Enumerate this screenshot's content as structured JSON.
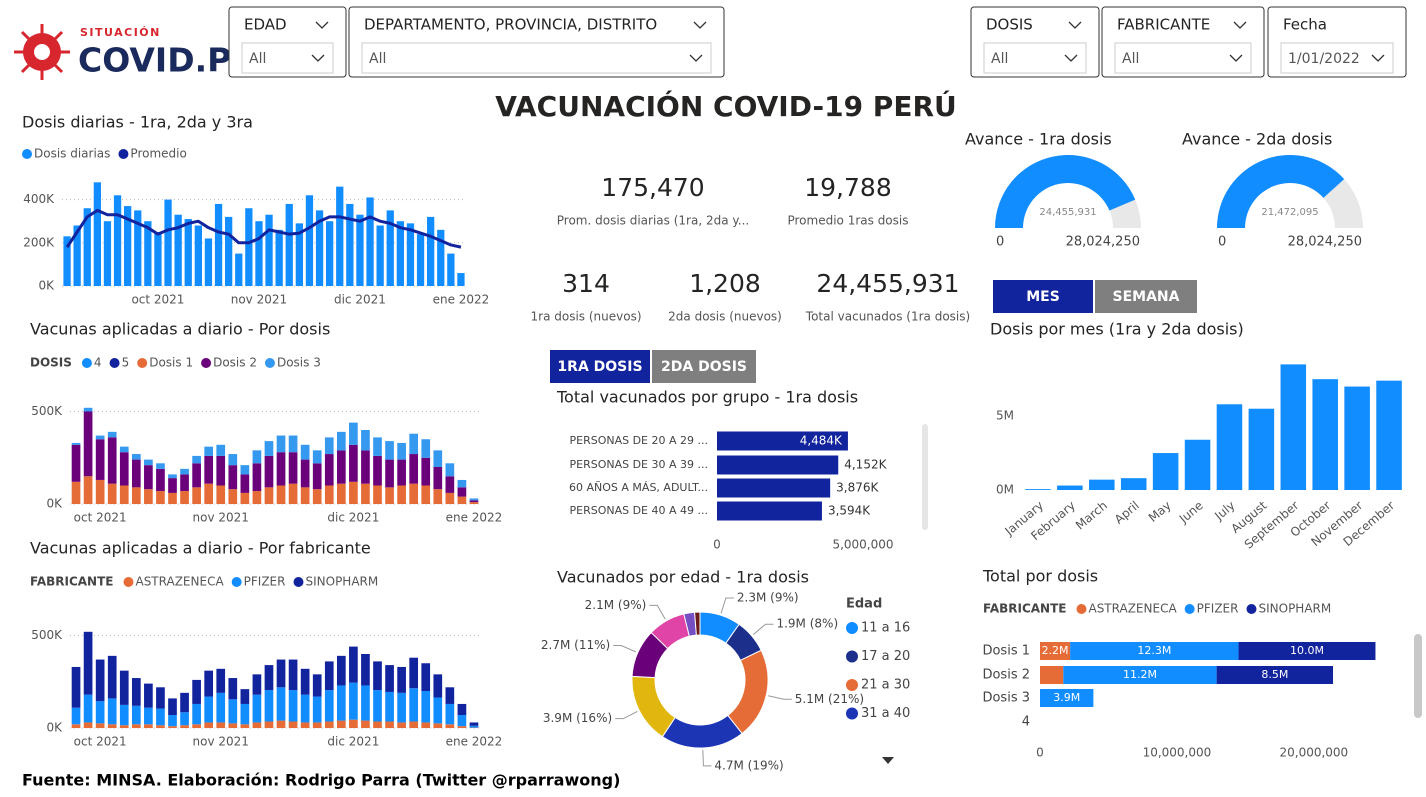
{
  "header": {
    "logo_top": "SITUACIÓN",
    "logo_main": "COVID.PE",
    "title": "VACUNACIÓN COVID-19 PERÚ"
  },
  "filters": [
    {
      "label": "EDAD",
      "value": "All"
    },
    {
      "label": "DEPARTAMENTO, PROVINCIA, DISTRITO",
      "value": "All"
    },
    {
      "label": "DOSIS",
      "value": "All"
    },
    {
      "label": "FABRICANTE",
      "value": "All"
    },
    {
      "label": "Fecha",
      "value": "1/01/2022"
    }
  ],
  "kpis": [
    {
      "value": "175,470",
      "label": "Prom. dosis diarias (1ra, 2da y..."
    },
    {
      "value": "19,788",
      "label": "Promedio 1ras dosis"
    },
    {
      "value": "314",
      "label": "1ra dosis (nuevos)"
    },
    {
      "value": "1,208",
      "label": "2da dosis (nuevos)"
    },
    {
      "value": "24,455,931",
      "label": "Total vacunados (1ra dosis)"
    }
  ],
  "toggles": {
    "period": [
      "MES",
      "SEMANA"
    ],
    "dose": [
      "1RA DOSIS",
      "2DA DOSIS"
    ]
  },
  "footer": "Fuente: MINSA. Elaboración: Rodrigo Parra (Twitter @rparrawong)",
  "chart_data": [
    {
      "type": "bar",
      "title": "Dosis diarias - 1ra, 2da y 3ra",
      "grid": true,
      "categories": [
        null,
        null,
        null,
        null,
        null,
        null,
        null,
        null,
        null,
        "oct 2021",
        null,
        null,
        null,
        null,
        null,
        null,
        null,
        null,
        null,
        "nov 2021",
        null,
        null,
        null,
        null,
        null,
        null,
        null,
        null,
        null,
        "dic 2021",
        null,
        null,
        null,
        null,
        null,
        null,
        null,
        null,
        null,
        "ene 2022"
      ],
      "series": [
        {
          "name": "Dosis diarias",
          "color": "#118dff",
          "values": [
            230000,
            280000,
            360000,
            480000,
            300000,
            420000,
            370000,
            350000,
            300000,
            250000,
            400000,
            330000,
            310000,
            280000,
            220000,
            380000,
            320000,
            150000,
            360000,
            300000,
            330000,
            260000,
            380000,
            290000,
            420000,
            350000,
            300000,
            460000,
            380000,
            330000,
            410000,
            280000,
            350000,
            300000,
            290000,
            240000,
            320000,
            260000,
            150000,
            60000
          ]
        },
        {
          "name": "Promedio",
          "color": "#12239e",
          "type": "line",
          "values": [
            180000,
            250000,
            320000,
            350000,
            330000,
            330000,
            310000,
            290000,
            270000,
            240000,
            260000,
            270000,
            290000,
            300000,
            270000,
            250000,
            240000,
            200000,
            200000,
            220000,
            260000,
            250000,
            240000,
            245000,
            270000,
            300000,
            320000,
            320000,
            310000,
            300000,
            320000,
            300000,
            290000,
            270000,
            260000,
            245000,
            230000,
            210000,
            190000,
            180000
          ]
        }
      ],
      "ylim": [
        0,
        500000
      ],
      "yticks": [
        {
          "value": 0,
          "label": "0K"
        },
        {
          "value": 200000,
          "label": "200K"
        },
        {
          "value": 400000,
          "label": "400K"
        }
      ]
    },
    {
      "type": "bar",
      "title": "Vacunas aplicadas a diario - Por dosis",
      "legend_title": "DOSIS",
      "grid": true,
      "categories": [
        null,
        null,
        "oct 2021",
        null,
        null,
        null,
        null,
        null,
        null,
        null,
        null,
        null,
        "nov 2021",
        null,
        null,
        null,
        null,
        null,
        null,
        null,
        null,
        null,
        null,
        "dic 2021",
        null,
        null,
        null,
        null,
        null,
        null,
        null,
        null,
        null,
        "ene 2022"
      ],
      "series": [
        {
          "name": "4",
          "color": "#118dff",
          "values": [
            0,
            0,
            0,
            0,
            0,
            0,
            0,
            0,
            0,
            0,
            0,
            0,
            0,
            0,
            0,
            0,
            0,
            0,
            0,
            0,
            0,
            0,
            0,
            0,
            0,
            0,
            0,
            0,
            0,
            0,
            0,
            0,
            0,
            0
          ]
        },
        {
          "name": "5",
          "color": "#12239e",
          "values": [
            0,
            0,
            0,
            0,
            0,
            0,
            0,
            0,
            0,
            0,
            0,
            0,
            0,
            0,
            0,
            0,
            0,
            0,
            0,
            0,
            0,
            0,
            0,
            0,
            0,
            0,
            0,
            0,
            0,
            0,
            0,
            0,
            0,
            0
          ]
        },
        {
          "name": "Dosis 1",
          "color": "#e66c37",
          "values": [
            120000,
            150000,
            130000,
            110000,
            100000,
            90000,
            80000,
            70000,
            60000,
            70000,
            90000,
            110000,
            100000,
            80000,
            60000,
            70000,
            90000,
            100000,
            110000,
            90000,
            80000,
            100000,
            110000,
            120000,
            110000,
            100000,
            90000,
            100000,
            110000,
            100000,
            80000,
            60000,
            40000,
            10000
          ]
        },
        {
          "name": "Dosis 2",
          "color": "#6b007b",
          "values": [
            200000,
            350000,
            220000,
            250000,
            180000,
            150000,
            130000,
            120000,
            80000,
            90000,
            130000,
            150000,
            160000,
            130000,
            100000,
            150000,
            170000,
            180000,
            170000,
            150000,
            140000,
            170000,
            180000,
            200000,
            180000,
            160000,
            150000,
            140000,
            160000,
            150000,
            120000,
            90000,
            50000,
            10000
          ]
        },
        {
          "name": "Dosis 3",
          "color": "#3599f0",
          "values": [
            10000,
            20000,
            20000,
            30000,
            30000,
            30000,
            30000,
            30000,
            20000,
            30000,
            40000,
            50000,
            60000,
            60000,
            50000,
            70000,
            80000,
            90000,
            90000,
            80000,
            70000,
            90000,
            100000,
            120000,
            110000,
            100000,
            100000,
            90000,
            110000,
            100000,
            90000,
            70000,
            40000,
            10000
          ]
        }
      ],
      "ylim": [
        0,
        600000
      ],
      "yticks": [
        {
          "value": 0,
          "label": "0K"
        },
        {
          "value": 500000,
          "label": "500K"
        }
      ]
    },
    {
      "type": "bar",
      "title": "Vacunas aplicadas a diario - Por fabricante",
      "legend_title": "FABRICANTE",
      "grid": true,
      "categories": [
        null,
        null,
        "oct 2021",
        null,
        null,
        null,
        null,
        null,
        null,
        null,
        null,
        null,
        "nov 2021",
        null,
        null,
        null,
        null,
        null,
        null,
        null,
        null,
        null,
        null,
        "dic 2021",
        null,
        null,
        null,
        null,
        null,
        null,
        null,
        null,
        null,
        "ene 2022"
      ],
      "series": [
        {
          "name": "ASTRAZENECA",
          "color": "#e66c37",
          "values": [
            20000,
            30000,
            25000,
            20000,
            15000,
            20000,
            20000,
            15000,
            10000,
            15000,
            20000,
            30000,
            30000,
            25000,
            20000,
            30000,
            35000,
            40000,
            35000,
            30000,
            30000,
            35000,
            40000,
            45000,
            40000,
            35000,
            35000,
            30000,
            35000,
            30000,
            25000,
            20000,
            10000,
            2000
          ]
        },
        {
          "name": "PFIZER",
          "color": "#118dff",
          "values": [
            90000,
            150000,
            120000,
            140000,
            110000,
            100000,
            90000,
            90000,
            60000,
            70000,
            110000,
            140000,
            160000,
            130000,
            110000,
            150000,
            170000,
            180000,
            170000,
            150000,
            140000,
            170000,
            190000,
            200000,
            190000,
            170000,
            160000,
            160000,
            180000,
            170000,
            140000,
            110000,
            60000,
            10000
          ]
        },
        {
          "name": "SINOPHARM",
          "color": "#12239e",
          "values": [
            220000,
            340000,
            225000,
            230000,
            185000,
            150000,
            130000,
            115000,
            90000,
            105000,
            130000,
            140000,
            130000,
            115000,
            80000,
            110000,
            135000,
            150000,
            165000,
            140000,
            120000,
            155000,
            160000,
            195000,
            170000,
            155000,
            145000,
            140000,
            165000,
            150000,
            125000,
            90000,
            60000,
            18000
          ]
        }
      ],
      "ylim": [
        0,
        600000
      ],
      "yticks": [
        {
          "value": 0,
          "label": "0K"
        },
        {
          "value": 500000,
          "label": "500K"
        }
      ]
    },
    {
      "type": "hbar",
      "title": "Total vacunados por grupo - 1ra dosis",
      "color": "#12239e",
      "categories": [
        "PERSONAS DE 20 A 29 ...",
        "PERSONAS DE 30 A 39 ...",
        "60 AÑOS A MÁS, ADULT...",
        "PERSONAS DE 40 A 49 ..."
      ],
      "values": [
        4484000,
        4152000,
        3876000,
        3594000
      ],
      "value_labels": [
        "4,484K",
        "4,152K",
        "3,876K",
        "3,594K"
      ],
      "xlim": [
        0,
        5000000
      ],
      "xticks": [
        0,
        {
          "value": 5000000,
          "label": "5,000,000"
        }
      ]
    },
    {
      "type": "pie",
      "donut": true,
      "title": "Vacunados por edad - 1ra dosis",
      "legend_title": "Edad",
      "categories": [
        "11 a 16",
        "17 a 20",
        "21 a 30",
        "31 a 40",
        null,
        null,
        null,
        null,
        null
      ],
      "values": [
        2300000,
        1900000,
        5100000,
        4700000,
        3900000,
        2700000,
        2100000,
        600000,
        300000
      ],
      "value_labels": [
        "2.3M (9%)",
        "1.9M (8%)",
        "5.1M (21%)",
        "4.7M (19%)",
        "3.9M (16%)",
        "2.7M (11%)",
        "2.1M (9%)",
        null,
        null
      ],
      "colors": [
        "#118dff",
        "#1c2f8a",
        "#e66c37",
        "#1b35b5",
        "#e1b70f",
        "#6b007b",
        "#e044a7",
        "#744ec2",
        "#6b1b1b"
      ]
    },
    {
      "type": "gauge",
      "title": "Avance - 1ra dosis",
      "color": "#118dff",
      "values": [
        24455931
      ],
      "value_labels": [
        "24,455,931"
      ],
      "ylim": [
        0,
        28024250
      ],
      "yticks": [
        0,
        {
          "value": 28024250,
          "label": "28,024,250"
        }
      ]
    },
    {
      "type": "gauge",
      "title": "Avance - 2da dosis",
      "color": "#118dff",
      "values": [
        21472095
      ],
      "value_labels": [
        "21,472,095"
      ],
      "ylim": [
        0,
        28024250
      ],
      "yticks": [
        0,
        {
          "value": 28024250,
          "label": "28,024,250"
        }
      ]
    },
    {
      "type": "bar",
      "title": "Dosis por mes (1ra y 2da dosis)",
      "xtick_rotation": -40,
      "categories": [
        "January",
        "February",
        "March",
        "April",
        "May",
        "June",
        "July",
        "August",
        "September",
        "October",
        "November",
        "December"
      ],
      "values": [
        60000,
        300000,
        700000,
        800000,
        2500000,
        3400000,
        5800000,
        5500000,
        8500000,
        7500000,
        7000000,
        7400000
      ],
      "color": "#118dff",
      "ylim": [
        0,
        9000000
      ],
      "yticks": [
        {
          "value": 0,
          "label": "0M"
        },
        {
          "value": 5000000,
          "label": "5M"
        }
      ]
    },
    {
      "type": "hbar",
      "title": "Total por dosis",
      "legend_title": "FABRICANTE",
      "categories": [
        "Dosis 1",
        "Dosis 2",
        "Dosis 3",
        "4"
      ],
      "series": [
        {
          "name": "ASTRAZENECA",
          "color": "#e66c37",
          "values": [
            2200000,
            1700000,
            0,
            0
          ],
          "value_labels": [
            "2.2M",
            null,
            null,
            null
          ]
        },
        {
          "name": "PFIZER",
          "color": "#118dff",
          "values": [
            12300000,
            11200000,
            3900000,
            0
          ],
          "value_labels": [
            "12.3M",
            "11.2M",
            "3.9M",
            null
          ]
        },
        {
          "name": "SINOPHARM",
          "color": "#12239e",
          "values": [
            10000000,
            8500000,
            0,
            0
          ],
          "value_labels": [
            "10.0M",
            "8.5M",
            null,
            null
          ]
        }
      ],
      "xlim": [
        0,
        26000000
      ],
      "xticks": [
        0,
        {
          "value": 10000000,
          "label": "10,000,000"
        },
        {
          "value": 20000000,
          "label": "20,000,000"
        }
      ]
    }
  ]
}
